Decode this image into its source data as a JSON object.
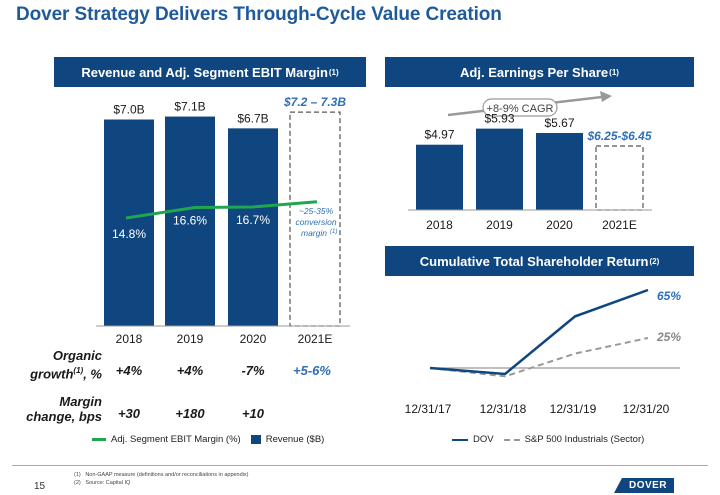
{
  "title": "Dover Strategy Delivers Through-Cycle Value Creation",
  "colors": {
    "navy": "#10467f",
    "green": "#1fa750",
    "accent_blue": "#2e6fb8",
    "gray": "#888888"
  },
  "revenue_panel": {
    "header": "Revenue and Adj. Segment EBIT Margin",
    "header_sup": "(1)"
  },
  "eps_panel": {
    "header": "Adj. Earnings Per Share",
    "header_sup": "(1)"
  },
  "tsr_panel": {
    "header": "Cumulative Total Shareholder Return",
    "header_sup": "(2)"
  },
  "rows": {
    "organic_label_1": "Organic",
    "organic_label_2": "growth",
    "organic_sup": "(1)",
    "organic_unit": ", %",
    "organic_values": [
      "+4%",
      "+4%",
      "-7%",
      "+5-6%"
    ],
    "margin_label_1": "Margin",
    "margin_label_2": "change, bps",
    "margin_values": [
      "+30",
      "+180",
      "+10"
    ]
  },
  "legend_left": {
    "margin": "Adj. Segment EBIT Margin (%)",
    "revenue": "Revenue ($B)"
  },
  "legend_right": {
    "dov": "DOV",
    "sp": "S&P 500 Industrials (Sector)"
  },
  "footnotes": {
    "n1": "(1)",
    "t1": "Non-GAAP measure (definitions and/or reconciliations in appendix)",
    "n2": "(2)",
    "t2": "Source: Capital IQ"
  },
  "page_number": "15",
  "logo": "DOVER",
  "chart_data": [
    {
      "type": "bar",
      "title": "Revenue and Adj. Segment EBIT Margin",
      "categories": [
        "2018",
        "2019",
        "2020",
        "2021E"
      ],
      "series": [
        {
          "name": "Revenue ($B)",
          "values": [
            7.0,
            7.1,
            6.7,
            7.25
          ],
          "labels": [
            "$7.0B",
            "$7.1B",
            "$6.7B",
            "$7.2 – 7.3B"
          ],
          "estimate": [
            false,
            false,
            false,
            true
          ]
        },
        {
          "name": "Adj. Segment EBIT Margin (%)",
          "type": "line",
          "values": [
            14.8,
            16.6,
            16.7,
            17.6
          ],
          "labels": [
            "14.8%",
            "16.6%",
            "16.7%",
            null
          ]
        }
      ],
      "annotation": {
        "line1": "~25-35%",
        "line2": "conversion",
        "line3": "margin",
        "sup": "(1)"
      },
      "ylim": [
        0,
        8
      ]
    },
    {
      "type": "bar",
      "title": "Adj. Earnings Per Share",
      "categories": [
        "2018",
        "2019",
        "2020",
        "2021E"
      ],
      "values": [
        4.97,
        5.93,
        5.67,
        6.35
      ],
      "labels": [
        "$4.97",
        "$5.93",
        "$5.67",
        "$6.25-$6.45"
      ],
      "estimate": [
        false,
        false,
        false,
        true
      ],
      "annotation": "+8-9% CAGR",
      "ylim": [
        0,
        7
      ]
    },
    {
      "type": "line",
      "title": "Cumulative Total Shareholder Return",
      "x": [
        "12/31/17",
        "12/31/18",
        "12/31/19",
        "12/31/20"
      ],
      "series": [
        {
          "name": "DOV",
          "values": [
            0,
            -0.05,
            0.43,
            0.65
          ],
          "end_label": "65%"
        },
        {
          "name": "S&P 500 Industrials (Sector)",
          "values": [
            0,
            -0.07,
            0.12,
            0.25
          ],
          "end_label": "25%"
        }
      ],
      "baseline": 0,
      "ylim": [
        -0.1,
        0.7
      ]
    }
  ]
}
